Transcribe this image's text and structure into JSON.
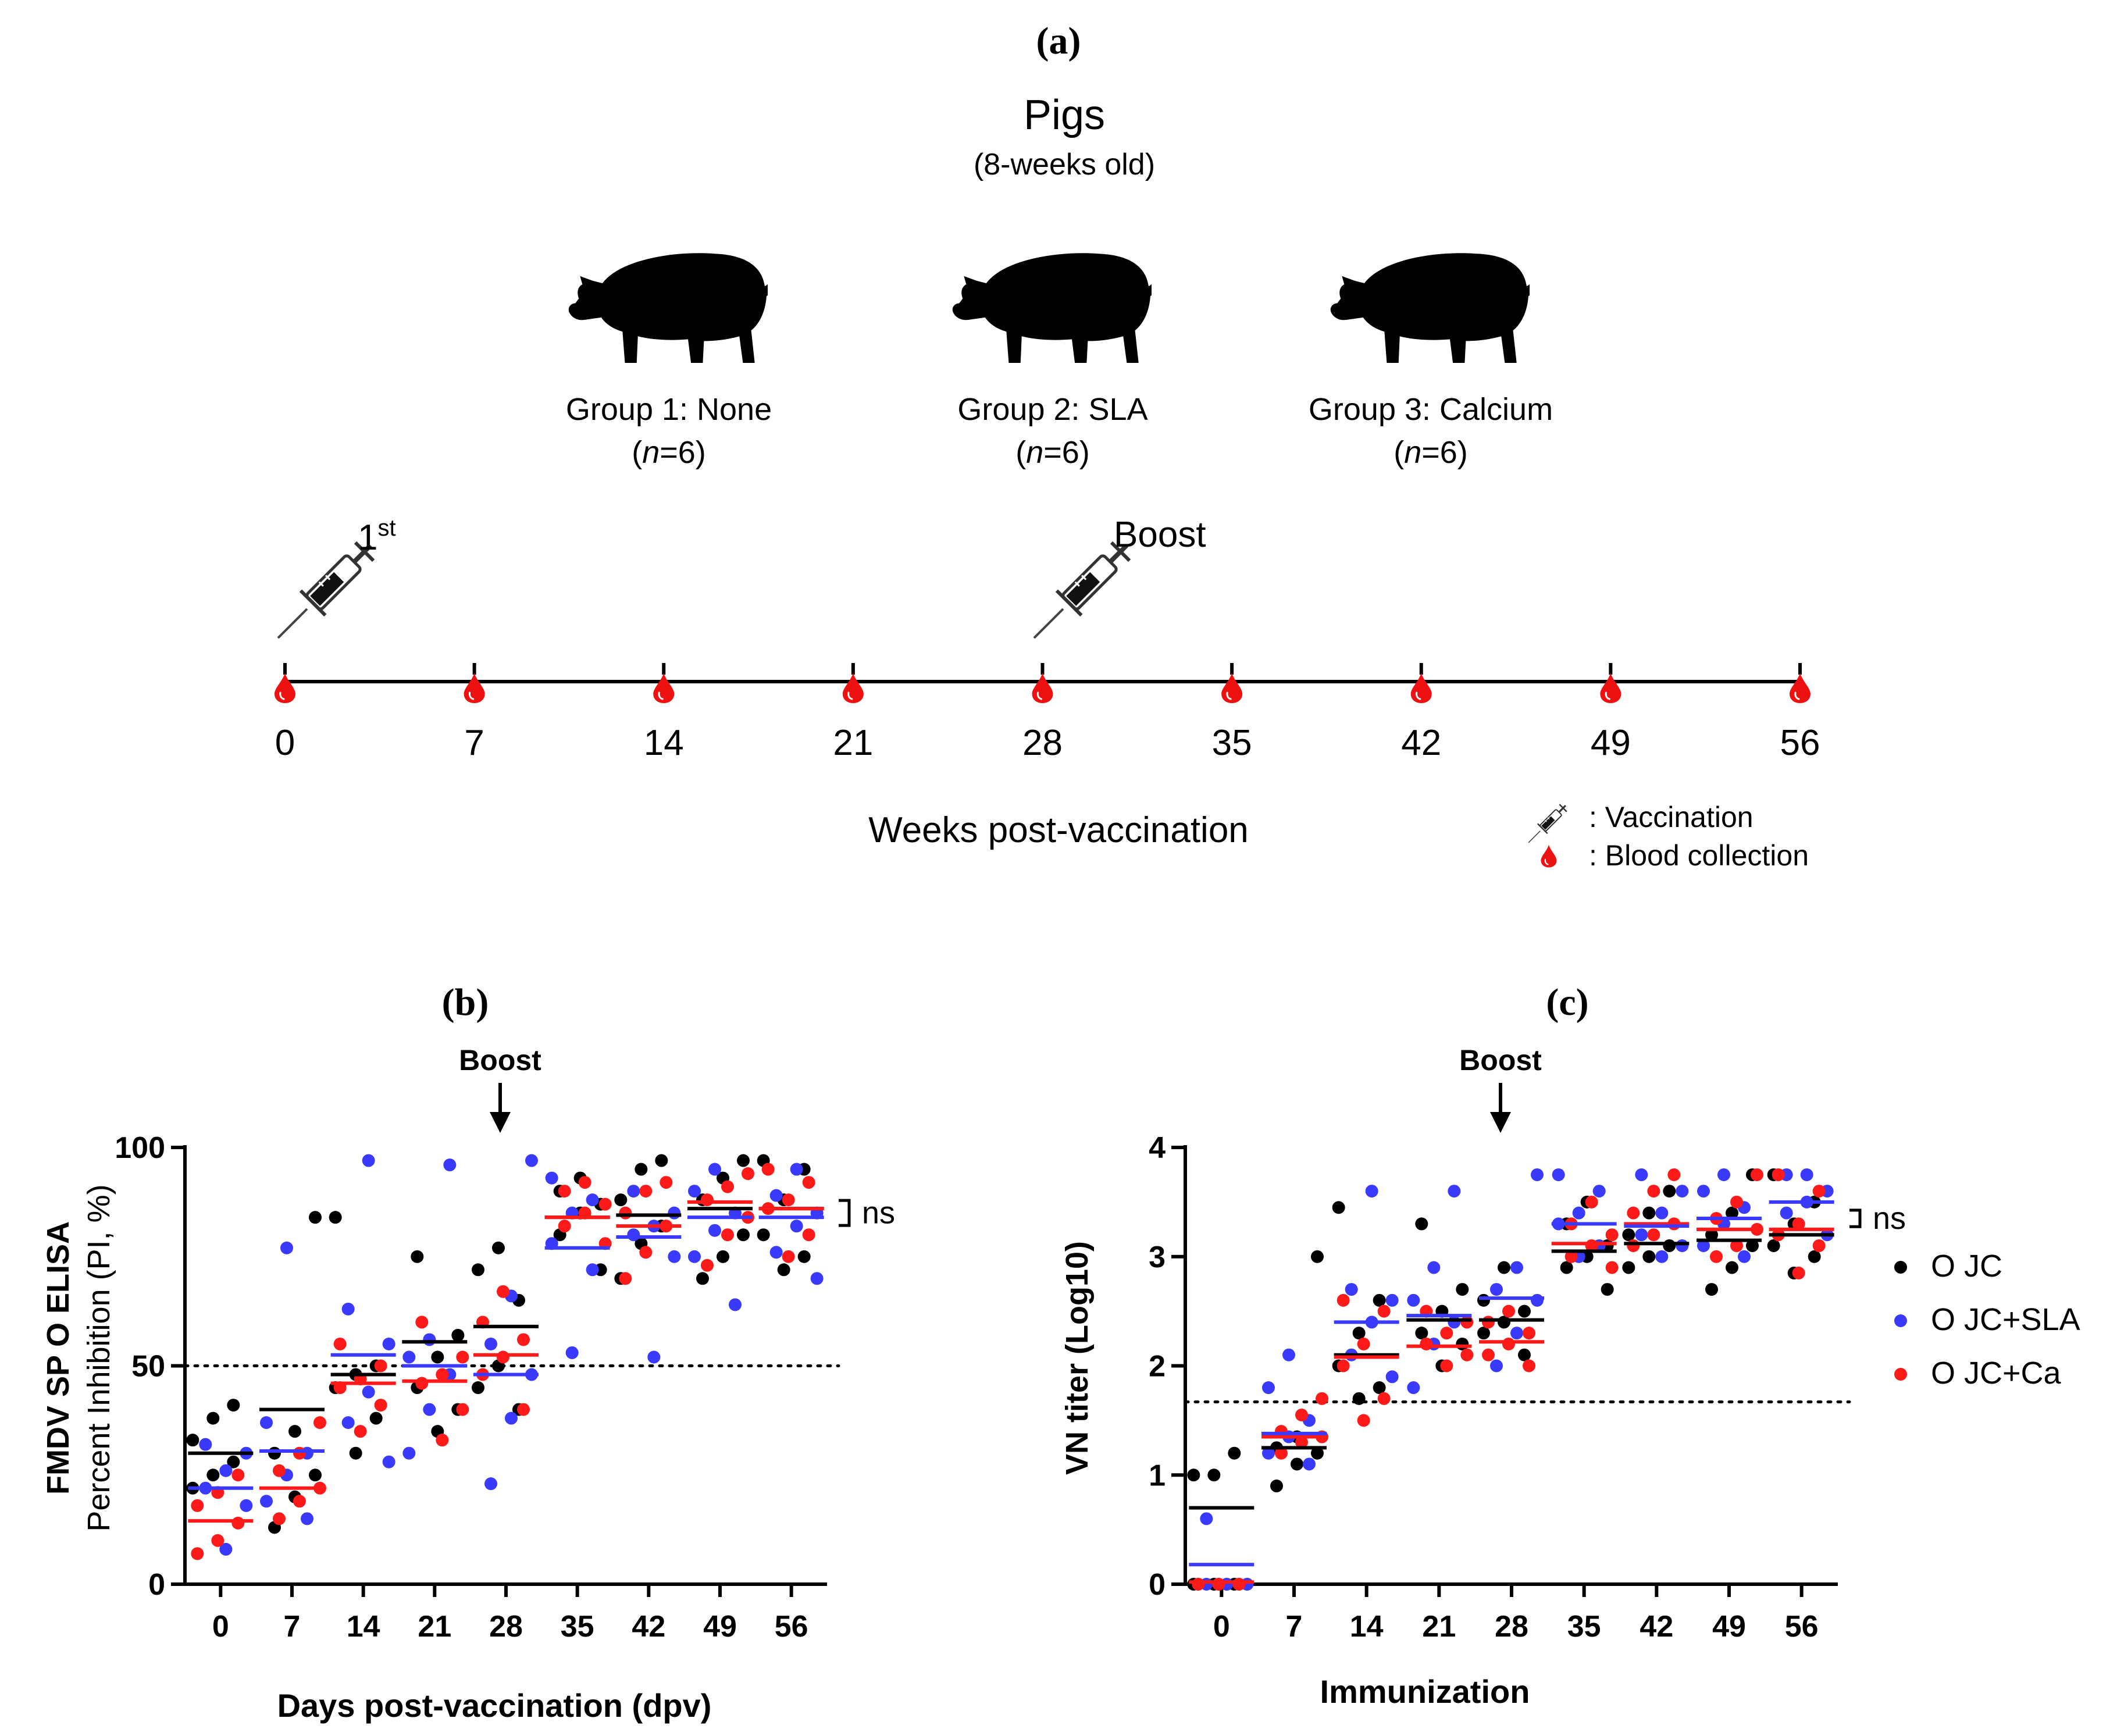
{
  "figure": {
    "panel_a_label": "(a)",
    "panel_b_label": "(b)",
    "panel_c_label": "(c)"
  },
  "schedule": {
    "subject_title": "Pigs",
    "subject_subtitle": "(8-weeks old)",
    "groups": [
      {
        "label": "Group 1: None",
        "n_prefix": "(",
        "n_italic": "n",
        "n_suffix": "=6)"
      },
      {
        "label": "Group 2: SLA",
        "n_prefix": "(",
        "n_italic": "n",
        "n_suffix": "=6)"
      },
      {
        "label": "Group 3: Calcium",
        "n_prefix": "(",
        "n_italic": "n",
        "n_suffix": "=6)"
      }
    ],
    "first_dose_label": "1",
    "first_dose_sup": "st",
    "boost_label": "Boost",
    "timepoints": [
      "0",
      "7",
      "14",
      "21",
      "28",
      "35",
      "42",
      "49",
      "56"
    ],
    "axis_label": "Weeks post-vaccination",
    "legend_vaccination": ": Vaccination",
    "legend_blood": ": Blood collection"
  },
  "colors": {
    "jc": "#000000",
    "sla": "#3a3aff",
    "ca": "#ff1a1a",
    "blood": "#ee1111",
    "ink": "#000000"
  },
  "chart_data": [
    {
      "type": "scatter",
      "panel": "b",
      "ylabel_line1": "FMDV SP O ELISA",
      "ylabel_line2": "Percent Inhibition (PI, %)",
      "xlabel": "Days post-vaccination (dpv)",
      "categories": [
        "0",
        "7",
        "14",
        "21",
        "28",
        "35",
        "42",
        "49",
        "56"
      ],
      "ylim": [
        0,
        100
      ],
      "yticks": [
        "0",
        "50",
        "100"
      ],
      "threshold": 50,
      "boost_label": "Boost",
      "boost_category": "28",
      "ns_label": "ns",
      "series": [
        {
          "name": "O JC",
          "color_key": "jc",
          "means": [
            30,
            40,
            48,
            55.5,
            59,
            84,
            84.5,
            86,
            86
          ],
          "points": [
            [
              22,
              25,
              28,
              33,
              38,
              41
            ],
            [
              13,
              20,
              25,
              30,
              35,
              84
            ],
            [
              30,
              38,
              45,
              48,
              50,
              84
            ],
            [
              35,
              40,
              45,
              52,
              57,
              75
            ],
            [
              40,
              45,
              50,
              65,
              72,
              77
            ],
            [
              72,
              80,
              85,
              87,
              90,
              93
            ],
            [
              70,
              78,
              82,
              88,
              95,
              97
            ],
            [
              70,
              75,
              80,
              88,
              93,
              97
            ],
            [
              72,
              75,
              80,
              88,
              95,
              97
            ]
          ]
        },
        {
          "name": "O JC+SLA",
          "color_key": "sla",
          "means": [
            22,
            30.5,
            52.5,
            50,
            48,
            77,
            79.5,
            84,
            84
          ],
          "points": [
            [
              8,
              18,
              22,
              26,
              30,
              32
            ],
            [
              15,
              19,
              25,
              30,
              37,
              77
            ],
            [
              28,
              37,
              44,
              55,
              63,
              97
            ],
            [
              30,
              40,
              48,
              52,
              56,
              96
            ],
            [
              23,
              38,
              48,
              55,
              66,
              97
            ],
            [
              53,
              72,
              78,
              85,
              88,
              93
            ],
            [
              52,
              75,
              80,
              82,
              85,
              90
            ],
            [
              64,
              75,
              81,
              85,
              90,
              95
            ],
            [
              70,
              76,
              82,
              85,
              89,
              95
            ]
          ]
        },
        {
          "name": "O JC+Ca",
          "color_key": "ca",
          "means": [
            14.5,
            22,
            46,
            46.5,
            52.5,
            84,
            82,
            87.5,
            86
          ],
          "points": [
            [
              7,
              10,
              14,
              18,
              21,
              25
            ],
            [
              15,
              19,
              22,
              26,
              30,
              37
            ],
            [
              35,
              41,
              45,
              47,
              50,
              55
            ],
            [
              33,
              40,
              46,
              48,
              52,
              60
            ],
            [
              40,
              48,
              52,
              56,
              60,
              67
            ],
            [
              78,
              82,
              85,
              87,
              90,
              92
            ],
            [
              70,
              76,
              82,
              85,
              90,
              92
            ],
            [
              73,
              80,
              84,
              88,
              91,
              94
            ],
            [
              75,
              80,
              86,
              88,
              92,
              95
            ]
          ]
        }
      ]
    },
    {
      "type": "scatter",
      "panel": "c",
      "ylabel": "VN titer (Log10)",
      "xlabel": "Immunization",
      "categories": [
        "0",
        "7",
        "14",
        "21",
        "28",
        "35",
        "42",
        "49",
        "56"
      ],
      "ylim": [
        0,
        4
      ],
      "yticks": [
        "0",
        "1",
        "2",
        "3",
        "4"
      ],
      "threshold": 1.67,
      "boost_label": "Boost",
      "boost_category": "28",
      "ns_label": "ns",
      "legend": [
        "O JC",
        "O JC+SLA",
        "O JC+Ca"
      ],
      "series": [
        {
          "name": "O JC",
          "color_key": "jc",
          "means": [
            0.7,
            1.25,
            2.1,
            2.42,
            2.42,
            3.05,
            3.12,
            3.15,
            3.2
          ],
          "points": [
            [
              0,
              0,
              0,
              1,
              1,
              1.2
            ],
            [
              0.9,
              1.1,
              1.2,
              1.25,
              1.35,
              3
            ],
            [
              1.7,
              1.8,
              2,
              2.3,
              2.6,
              3.45
            ],
            [
              2,
              2.2,
              2.3,
              2.5,
              2.7,
              3.3
            ],
            [
              2.1,
              2.3,
              2.4,
              2.5,
              2.6,
              2.9
            ],
            [
              2.7,
              2.9,
              3,
              3.1,
              3.3,
              3.5
            ],
            [
              2.9,
              3,
              3.1,
              3.2,
              3.4,
              3.6
            ],
            [
              2.7,
              2.9,
              3.1,
              3.2,
              3.4,
              3.75
            ],
            [
              2.85,
              3,
              3.1,
              3.3,
              3.5,
              3.75
            ]
          ]
        },
        {
          "name": "O JC+SLA",
          "color_key": "sla",
          "means": [
            0.18,
            1.38,
            2.4,
            2.46,
            2.62,
            3.3,
            3.28,
            3.35,
            3.5
          ],
          "points": [
            [
              0,
              0,
              0,
              0,
              0,
              0.6
            ],
            [
              1.1,
              1.2,
              1.35,
              1.5,
              1.8,
              2.1
            ],
            [
              1.9,
              2.1,
              2.4,
              2.6,
              2.7,
              3.6
            ],
            [
              1.8,
              2.2,
              2.4,
              2.6,
              2.9,
              3.6
            ],
            [
              2,
              2.3,
              2.6,
              2.7,
              2.9,
              3.75
            ],
            [
              3,
              3.1,
              3.3,
              3.4,
              3.6,
              3.75
            ],
            [
              3,
              3.1,
              3.2,
              3.4,
              3.6,
              3.75
            ],
            [
              3,
              3.1,
              3.3,
              3.45,
              3.6,
              3.75
            ],
            [
              3.2,
              3.4,
              3.5,
              3.6,
              3.75,
              3.75
            ]
          ]
        },
        {
          "name": "O JC+Ca",
          "color_key": "ca",
          "means": [
            0.02,
            1.35,
            2.08,
            2.18,
            2.22,
            3.12,
            3.3,
            3.25,
            3.25
          ],
          "points": [
            [
              0,
              0,
              0,
              0,
              0,
              0
            ],
            [
              1.2,
              1.3,
              1.35,
              1.4,
              1.55,
              1.7
            ],
            [
              1.5,
              1.7,
              2,
              2.2,
              2.5,
              2.6
            ],
            [
              2,
              2.1,
              2.2,
              2.3,
              2.4,
              2.5
            ],
            [
              2,
              2.1,
              2.2,
              2.3,
              2.4,
              2.5
            ],
            [
              2.9,
              3,
              3.1,
              3.2,
              3.3,
              3.5
            ],
            [
              3.1,
              3.2,
              3.3,
              3.4,
              3.6,
              3.75
            ],
            [
              3,
              3.1,
              3.25,
              3.35,
              3.5,
              3.75
            ],
            [
              2.85,
              3.1,
              3.2,
              3.3,
              3.6,
              3.75
            ]
          ]
        }
      ]
    }
  ]
}
